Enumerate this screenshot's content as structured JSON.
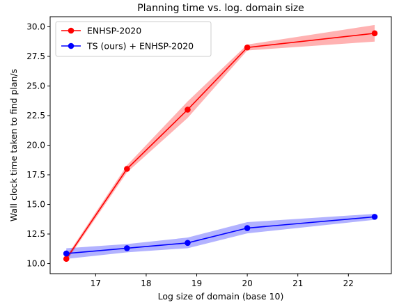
{
  "chart_data": {
    "type": "line",
    "title": "Planning time vs. log. domain size",
    "xlabel": "Log size of domain (base 10)",
    "ylabel": "Wall clock time taken to find plan/s",
    "xlim": [
      16.1,
      22.85
    ],
    "ylim": [
      9.15,
      30.85
    ],
    "xticks": [
      17,
      18,
      19,
      20,
      21,
      22
    ],
    "xtick_labels": [
      "17",
      "18",
      "19",
      "20",
      "21",
      "22"
    ],
    "yticks": [
      10.0,
      12.5,
      15.0,
      17.5,
      20.0,
      22.5,
      25.0,
      27.5,
      30.0
    ],
    "ytick_labels": [
      "10.0",
      "12.5",
      "15.0",
      "17.5",
      "20.0",
      "22.5",
      "25.0",
      "27.5",
      "30.0"
    ],
    "grid": false,
    "legend_position": "top-left",
    "series": [
      {
        "name": "ENHSP-2020",
        "color": "#ff0000",
        "x": [
          16.42,
          17.62,
          18.82,
          20.0,
          22.52
        ],
        "y": [
          10.4,
          18.0,
          23.0,
          28.25,
          29.45
        ],
        "lower": [
          10.2,
          17.7,
          22.3,
          28.0,
          28.75
        ],
        "upper": [
          10.6,
          18.3,
          23.7,
          28.5,
          30.15
        ]
      },
      {
        "name": "TS (ours) + ENHSP-2020",
        "color": "#0000ff",
        "x": [
          16.42,
          17.62,
          18.82,
          20.0,
          22.52
        ],
        "y": [
          10.85,
          11.3,
          11.75,
          13.0,
          13.95
        ],
        "lower": [
          10.4,
          10.95,
          11.3,
          12.55,
          13.7
        ],
        "upper": [
          11.3,
          11.65,
          12.2,
          13.5,
          14.2
        ]
      }
    ]
  }
}
